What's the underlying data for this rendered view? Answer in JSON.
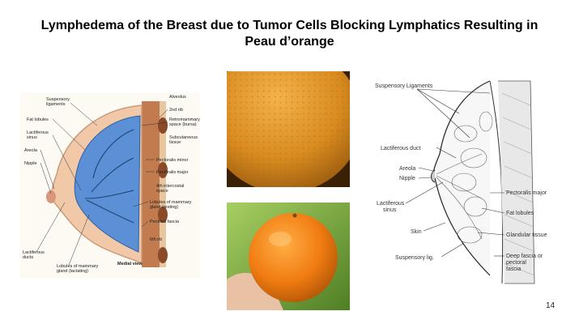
{
  "slide": {
    "title_line1": "Lymphedema of the Breast due to Tumor Cells Blocking Lymphatics Resulting in",
    "title_line2": "Peau d’orange",
    "slide_number": "14"
  },
  "left_figure": {
    "labels": {
      "suspensory_ligaments": "Suspensory\nligaments",
      "fat_lobules": "Fat lobules",
      "lactiferous_sinus": "Lactiferous\nsinus",
      "areola": "Areola",
      "nipple": "Nipple",
      "lactiferous_ducts": "Lactiferous\nducts",
      "lobules_lactating": "Lobules of mammary\ngland (lactating)",
      "alveolus": "Alveolus",
      "second_rib": "2nd rib",
      "retromammary_space": "Retromammary\nspace (bursa)",
      "subcutaneous_tissue": "Subcutaneous\ntissue",
      "pectoralis_minor": "Pectoralis minor",
      "pectoralis_major": "Pectoralis major",
      "fourth_intercostal": "4th intercostal\nspace",
      "lobules_resting": "Lobules of mammary\ngland (resting)",
      "pectoral_fascia": "Pectoral fascia",
      "sixth_rib": "6th rib",
      "medial_view": "Medial view"
    }
  },
  "right_figure": {
    "labels": {
      "suspensory_ligaments": "Suspensory Ligaments",
      "lactiferous_duct": "Lactiferous duct",
      "areola": "Areola",
      "nipple": "Nipple",
      "lactiferous_sinus": "Lactiferous\nsinus",
      "skin": "Skin",
      "suspensory_lig": "Suspensory lig.",
      "pectoralis_major": "Pectoralis major",
      "fat_lobules": "Fat lobules",
      "glandular_tissue": "Glandular tissue",
      "deep_fascia": "Deep fascia or\npectoral\nfascia"
    }
  },
  "colors": {
    "breast_skin": "#f2c9a8",
    "glandular_blue": "#5b8fd6",
    "muscle": "#b5653b",
    "orange": "#e8821b",
    "background_green": "#7fb43c"
  }
}
